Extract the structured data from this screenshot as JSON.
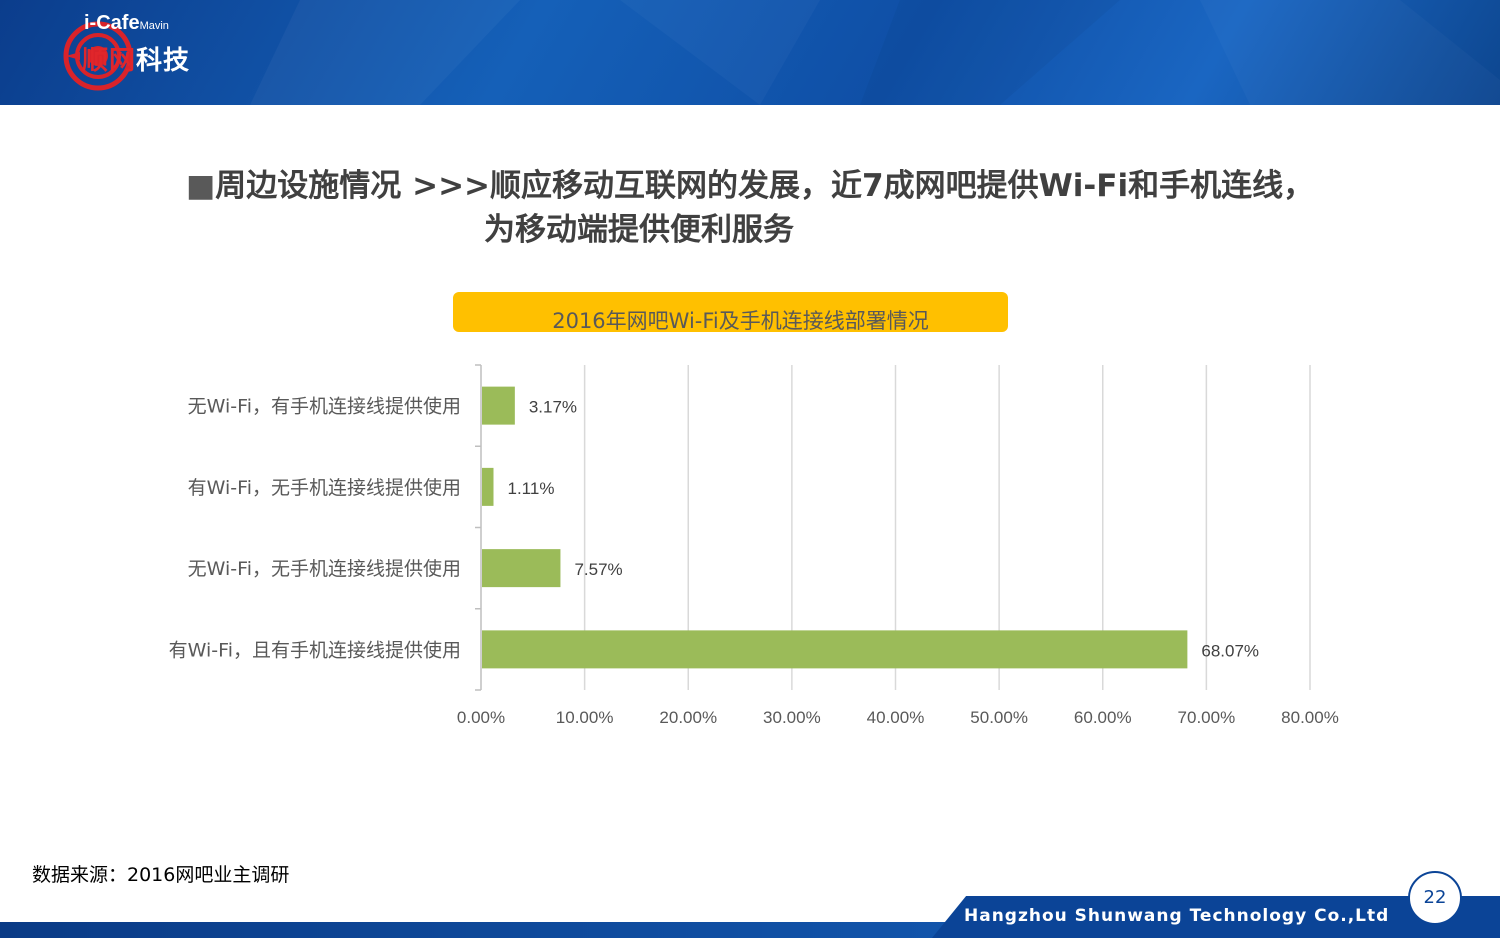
{
  "brand": {
    "logo_top": "i-Cafe",
    "logo_sub": "Mavin",
    "logo_cn_red": "顺网",
    "logo_cn_white": "科技"
  },
  "headline": {
    "line1": "周边设施情况   >>>顺应移动互联网的发展，近7成网吧提供Wi-Fi和手机连线，",
    "line2": "为移动端提供便利服务",
    "bullet": "■"
  },
  "chart_data": {
    "type": "bar",
    "orientation": "horizontal",
    "title": "2016年网吧Wi-Fi及手机连接线部署情况",
    "categories": [
      "无Wi-Fi，有手机连接线提供使用",
      "有Wi-Fi，无手机连接线提供使用",
      "无Wi-Fi，无手机连接线提供使用",
      "有Wi-Fi，且有手机连接线提供使用"
    ],
    "values": [
      3.17,
      1.11,
      7.57,
      68.07
    ],
    "value_labels": [
      "3.17%",
      "1.11%",
      "7.57%",
      "68.07%"
    ],
    "xlim": [
      0,
      80
    ],
    "x_ticks": [
      "0.00%",
      "10.00%",
      "20.00%",
      "30.00%",
      "40.00%",
      "50.00%",
      "60.00%",
      "70.00%",
      "80.00%"
    ],
    "grid": true,
    "bar_color": "#9bbb59",
    "title_bg": "#ffc000"
  },
  "source": "数据来源：2016网吧业主调研",
  "footer": {
    "company": "Hangzhou Shunwang Technology Co.,Ltd",
    "page": "22"
  }
}
